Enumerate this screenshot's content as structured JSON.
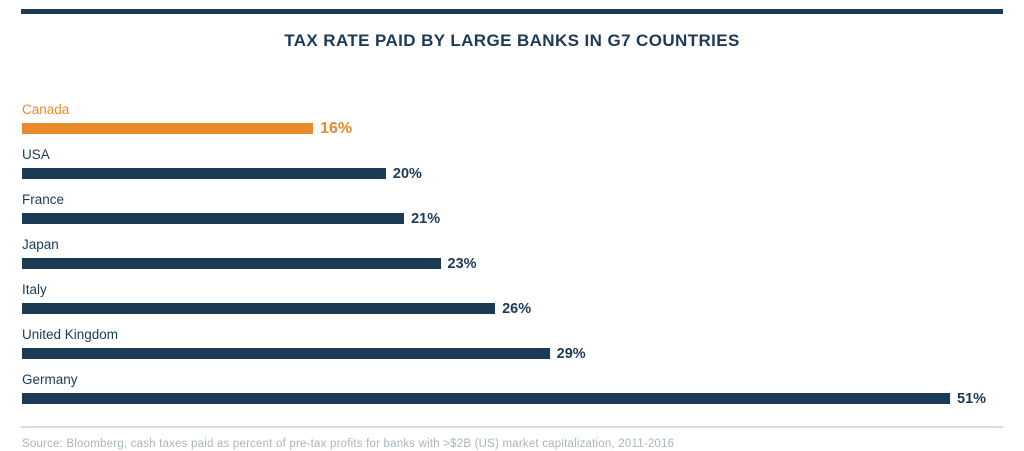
{
  "title": "TAX RATE PAID BY LARGE BANKS IN G7 COUNTRIES",
  "source": "Source: Bloomberg, cash taxes paid as percent of pre-tax profits for banks with >$2B (US) market capitalization, 2011-2016",
  "colors": {
    "navy": "#1b3a55",
    "orange": "#e98a2b",
    "source_gray": "#a9b5bd",
    "divider_gray": "#d7dce0"
  },
  "chart_data": {
    "type": "bar",
    "orientation": "horizontal",
    "categories": [
      "Canada",
      "USA",
      "France",
      "Japan",
      "Italy",
      "United Kingdom",
      "Germany"
    ],
    "values": [
      16,
      20,
      21,
      23,
      26,
      29,
      51
    ],
    "value_suffix": "%",
    "highlight_category": "Canada",
    "xlim": [
      0,
      51
    ],
    "grid": false,
    "legend": false
  }
}
